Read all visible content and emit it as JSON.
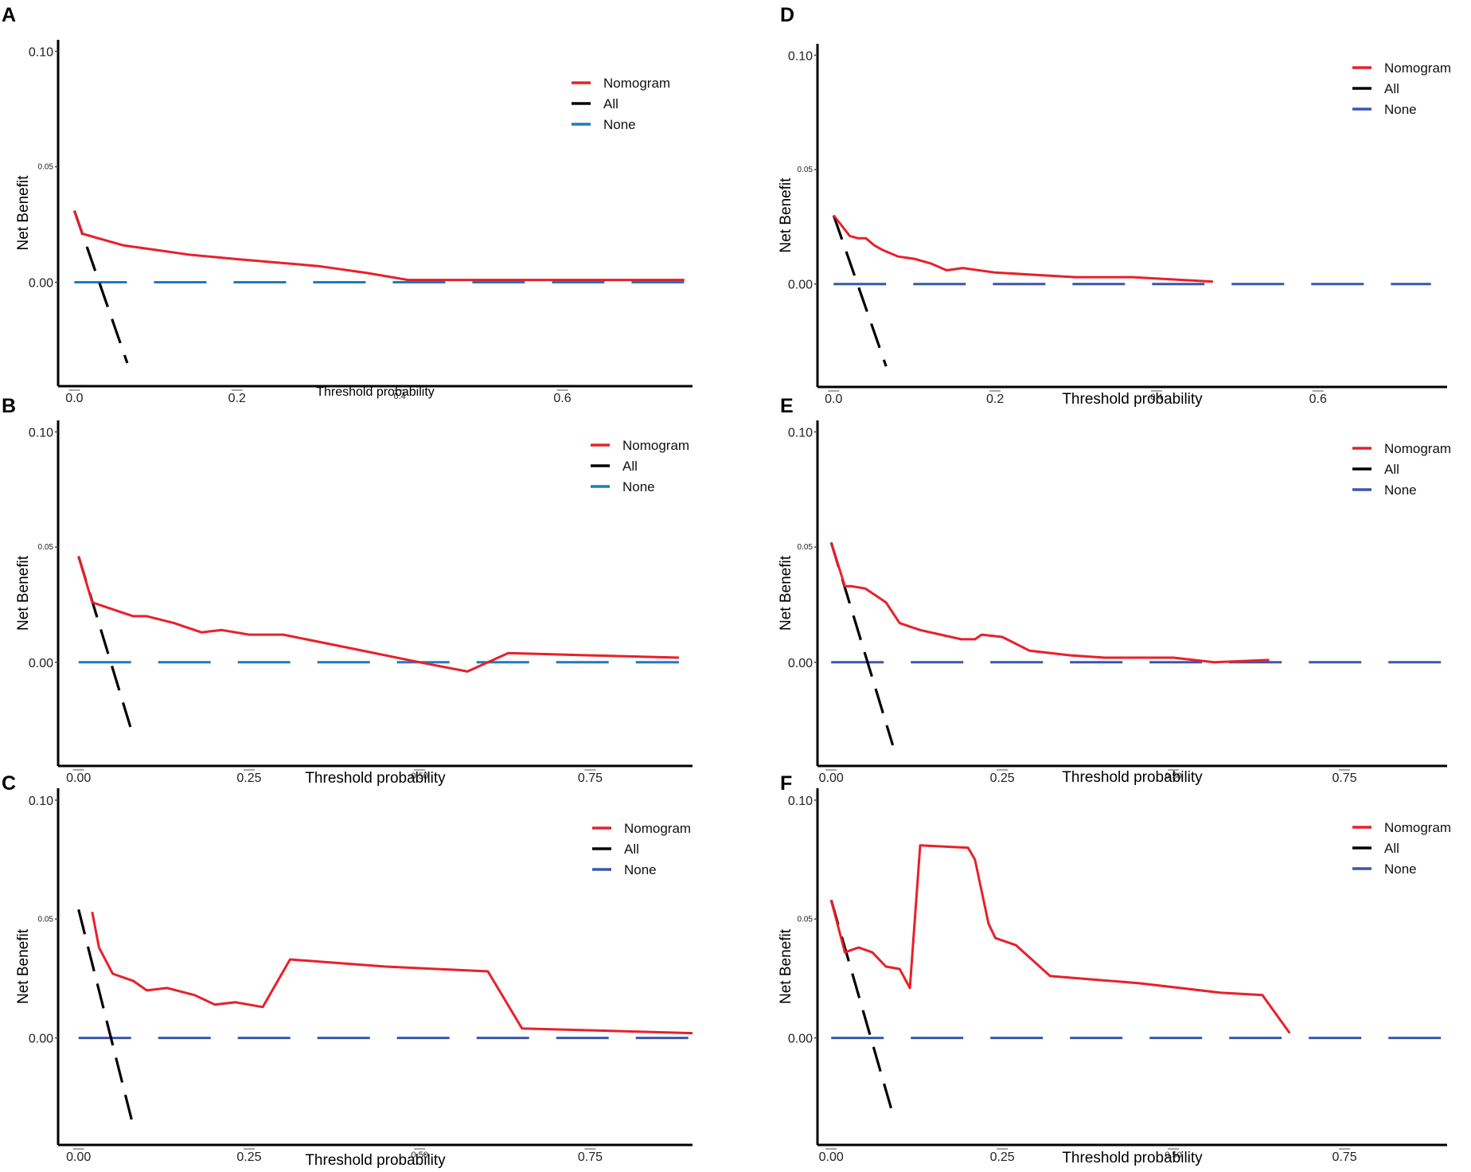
{
  "chart_data": [
    {
      "panel": "A",
      "type": "line",
      "xlabel": "Threshold probability",
      "ylabel": "Net Benefit",
      "xlim": [
        -0.02,
        0.76
      ],
      "ylim": [
        -0.045,
        0.105
      ],
      "xticks": [
        0.0,
        0.2,
        0.4,
        0.6
      ],
      "xtick_labels": [
        "0.0",
        "0.2",
        "0.4",
        "0.6"
      ],
      "yticks": [
        0.1,
        0.05,
        0.0
      ],
      "ytick_labels": [
        "0.10",
        "0.05",
        "0.00"
      ],
      "legend": {
        "position": "top-right",
        "entries": [
          "Nomogram",
          "All",
          "None"
        ]
      },
      "colors": {
        "nomogram": "#e8202a",
        "all": "#000000",
        "none": "#1f7ac0"
      },
      "series": [
        {
          "name": "Nomogram",
          "style": "solid",
          "x": [
            0.0,
            0.01,
            0.02,
            0.04,
            0.06,
            0.1,
            0.14,
            0.2,
            0.3,
            0.36,
            0.41,
            0.5,
            0.6,
            0.75
          ],
          "y": [
            0.031,
            0.021,
            0.02,
            0.018,
            0.016,
            0.014,
            0.012,
            0.01,
            0.007,
            0.004,
            0.001,
            0.001,
            0.001,
            0.001
          ]
        },
        {
          "name": "All",
          "style": "dashed",
          "x": [
            0.0,
            0.065
          ],
          "y": [
            0.031,
            -0.035
          ]
        },
        {
          "name": "None",
          "style": "dashed",
          "x": [
            0.0,
            0.75
          ],
          "y": [
            0.0,
            0.0
          ]
        }
      ]
    },
    {
      "panel": "B",
      "type": "line",
      "xlabel": "Threshold probability",
      "ylabel": "Net Benefit",
      "xlim": [
        -0.03,
        0.9
      ],
      "ylim": [
        -0.045,
        0.105
      ],
      "xticks": [
        0.0,
        0.25,
        0.5,
        0.75
      ],
      "xtick_labels": [
        "0.00",
        "0.25",
        "0.50",
        "0.75"
      ],
      "yticks": [
        0.1,
        0.05,
        0.0
      ],
      "ytick_labels": [
        "0.10",
        "0.05",
        "0.00"
      ],
      "legend": {
        "position": "top-right",
        "entries": [
          "Nomogram",
          "All",
          "None"
        ]
      },
      "colors": {
        "nomogram": "#e8202a",
        "all": "#000000",
        "none": "#1f7ac0"
      },
      "series": [
        {
          "name": "Nomogram",
          "style": "solid",
          "x": [
            0.0,
            0.02,
            0.03,
            0.05,
            0.08,
            0.1,
            0.14,
            0.18,
            0.21,
            0.25,
            0.3,
            0.4,
            0.5,
            0.57,
            0.63,
            0.75,
            0.88
          ],
          "y": [
            0.046,
            0.026,
            0.025,
            0.023,
            0.02,
            0.02,
            0.017,
            0.013,
            0.014,
            0.012,
            0.012,
            0.006,
            0.0,
            -0.004,
            0.004,
            0.003,
            0.002
          ]
        },
        {
          "name": "All",
          "style": "dashed",
          "x": [
            0.0,
            0.08
          ],
          "y": [
            0.046,
            -0.032
          ]
        },
        {
          "name": "None",
          "style": "dashed",
          "x": [
            0.0,
            0.88
          ],
          "y": [
            0.0,
            0.0
          ]
        }
      ]
    },
    {
      "panel": "C",
      "type": "line",
      "xlabel": "Threshold probability",
      "ylabel": "Net Benefit",
      "xlim": [
        -0.03,
        0.9
      ],
      "ylim": [
        -0.045,
        0.105
      ],
      "xticks": [
        0.0,
        0.25,
        0.5,
        0.75
      ],
      "xtick_labels": [
        "0.00",
        "0.25",
        "0.50",
        "0.75"
      ],
      "yticks": [
        0.1,
        0.05,
        0.0
      ],
      "ytick_labels": [
        "0.10",
        "0.05",
        "0.00"
      ],
      "legend": {
        "position": "top-right",
        "entries": [
          "Nomogram",
          "All",
          "None"
        ]
      },
      "colors": {
        "nomogram": "#e8202a",
        "all": "#000000",
        "none": "#3a56b0"
      },
      "series": [
        {
          "name": "Nomogram",
          "style": "solid",
          "x": [
            0.02,
            0.03,
            0.05,
            0.08,
            0.1,
            0.13,
            0.17,
            0.2,
            0.23,
            0.27,
            0.31,
            0.45,
            0.6,
            0.65,
            0.9
          ],
          "y": [
            0.053,
            0.038,
            0.027,
            0.024,
            0.02,
            0.021,
            0.018,
            0.014,
            0.015,
            0.013,
            0.033,
            0.03,
            0.028,
            0.004,
            0.002
          ]
        },
        {
          "name": "All",
          "style": "dashed",
          "x": [
            0.0,
            0.08
          ],
          "y": [
            0.054,
            -0.037
          ]
        },
        {
          "name": "None",
          "style": "dashed",
          "x": [
            0.0,
            0.9
          ],
          "y": [
            0.0,
            0.0
          ]
        }
      ]
    },
    {
      "panel": "D",
      "type": "line",
      "xlabel": "Threshold probability",
      "ylabel": "Net Benefit",
      "xlim": [
        -0.02,
        0.76
      ],
      "ylim": [
        -0.045,
        0.105
      ],
      "xticks": [
        0.0,
        0.2,
        0.4,
        0.6
      ],
      "xtick_labels": [
        "0.0",
        "0.2",
        "0.4",
        "0.6"
      ],
      "yticks": [
        0.1,
        0.05,
        0.0
      ],
      "ytick_labels": [
        "0.10",
        "0.05",
        "0.00"
      ],
      "legend": {
        "position": "top-right",
        "entries": [
          "Nomogram",
          "All",
          "None"
        ]
      },
      "colors": {
        "nomogram": "#e8202a",
        "all": "#000000",
        "none": "#3a56b0"
      },
      "series": [
        {
          "name": "Nomogram",
          "style": "solid",
          "x": [
            0.0,
            0.02,
            0.03,
            0.04,
            0.05,
            0.06,
            0.08,
            0.1,
            0.12,
            0.14,
            0.16,
            0.2,
            0.25,
            0.3,
            0.37,
            0.47
          ],
          "y": [
            0.03,
            0.021,
            0.02,
            0.02,
            0.017,
            0.015,
            0.012,
            0.011,
            0.009,
            0.006,
            0.007,
            0.005,
            0.004,
            0.003,
            0.003,
            0.001
          ]
        },
        {
          "name": "All",
          "style": "dashed",
          "x": [
            0.0,
            0.065
          ],
          "y": [
            0.03,
            -0.036
          ]
        },
        {
          "name": "None",
          "style": "dashed",
          "x": [
            0.0,
            0.74
          ],
          "y": [
            0.0,
            0.0
          ]
        }
      ]
    },
    {
      "panel": "E",
      "type": "line",
      "xlabel": "Threshold probability",
      "ylabel": "Net Benefit",
      "xlim": [
        -0.02,
        0.9
      ],
      "ylim": [
        -0.045,
        0.105
      ],
      "xticks": [
        0.0,
        0.25,
        0.5,
        0.75
      ],
      "xtick_labels": [
        "0.00",
        "0.25",
        "0.50",
        "0.75"
      ],
      "yticks": [
        0.1,
        0.05,
        0.0
      ],
      "ytick_labels": [
        "0.10",
        "0.05",
        "0.00"
      ],
      "legend": {
        "position": "top-right",
        "entries": [
          "Nomogram",
          "All",
          "None"
        ]
      },
      "colors": {
        "nomogram": "#e8202a",
        "all": "#000000",
        "none": "#3a56b0"
      },
      "series": [
        {
          "name": "Nomogram",
          "style": "solid",
          "x": [
            0.0,
            0.02,
            0.03,
            0.05,
            0.07,
            0.08,
            0.1,
            0.13,
            0.16,
            0.19,
            0.21,
            0.22,
            0.25,
            0.29,
            0.35,
            0.4,
            0.45,
            0.5,
            0.56,
            0.64
          ],
          "y": [
            0.052,
            0.033,
            0.033,
            0.032,
            0.028,
            0.026,
            0.017,
            0.014,
            0.012,
            0.01,
            0.01,
            0.012,
            0.011,
            0.005,
            0.003,
            0.002,
            0.002,
            0.002,
            0.0,
            0.001
          ]
        },
        {
          "name": "All",
          "style": "dashed",
          "x": [
            0.0,
            0.09
          ],
          "y": [
            0.052,
            -0.036
          ]
        },
        {
          "name": "None",
          "style": "dashed",
          "x": [
            0.0,
            0.9
          ],
          "y": [
            0.0,
            0.0
          ]
        }
      ]
    },
    {
      "panel": "F",
      "type": "line",
      "xlabel": "Threshold probability",
      "ylabel": "Net Benefit",
      "xlim": [
        -0.02,
        0.9
      ],
      "ylim": [
        -0.045,
        0.105
      ],
      "xticks": [
        0.0,
        0.25,
        0.5,
        0.75
      ],
      "xtick_labels": [
        "0.00",
        "0.25",
        "0.50",
        "0.75"
      ],
      "yticks": [
        0.1,
        0.05,
        0.0
      ],
      "ytick_labels": [
        "0.10",
        "0.05",
        "0.00"
      ],
      "legend": {
        "position": "top-right",
        "entries": [
          "Nomogram",
          "All",
          "None"
        ]
      },
      "colors": {
        "nomogram": "#e8202a",
        "all": "#000000",
        "none": "#3a56b0"
      },
      "series": [
        {
          "name": "Nomogram",
          "style": "solid",
          "x": [
            0.0,
            0.02,
            0.04,
            0.06,
            0.08,
            0.1,
            0.115,
            0.13,
            0.2,
            0.21,
            0.23,
            0.24,
            0.27,
            0.32,
            0.45,
            0.57,
            0.63,
            0.67
          ],
          "y": [
            0.058,
            0.036,
            0.038,
            0.036,
            0.03,
            0.029,
            0.021,
            0.081,
            0.08,
            0.075,
            0.048,
            0.042,
            0.039,
            0.026,
            0.023,
            0.019,
            0.018,
            0.002
          ]
        },
        {
          "name": "All",
          "style": "dashed",
          "x": [
            0.0,
            0.09
          ],
          "y": [
            0.058,
            -0.032
          ]
        },
        {
          "name": "None",
          "style": "dashed",
          "x": [
            0.0,
            0.9
          ],
          "y": [
            0.0,
            0.0
          ]
        }
      ]
    }
  ]
}
